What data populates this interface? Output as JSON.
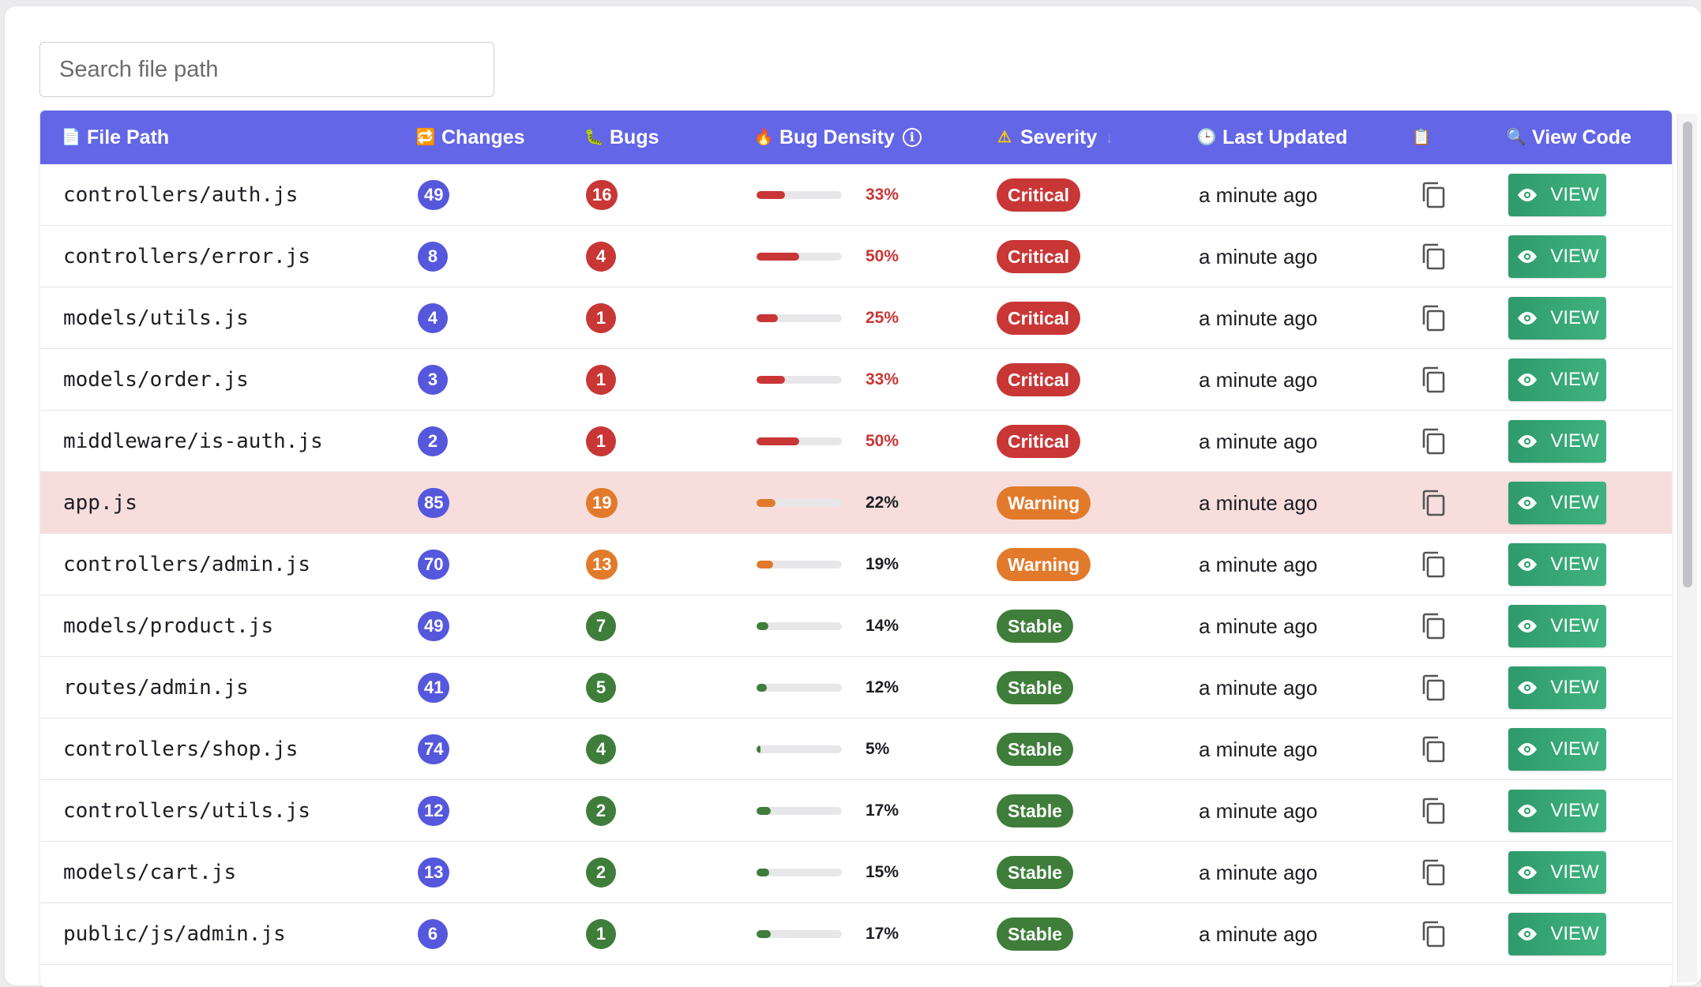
{
  "search": {
    "placeholder": "Search file path",
    "value": ""
  },
  "table": {
    "columns": [
      {
        "key": "file_path",
        "label": "File Path",
        "icon": "page-icon",
        "glyph": "📄"
      },
      {
        "key": "changes",
        "label": "Changes",
        "icon": "cycle-icon",
        "glyph": "🔁"
      },
      {
        "key": "bugs",
        "label": "Bugs",
        "icon": "bug-icon",
        "glyph": "🐛"
      },
      {
        "key": "bug_density",
        "label": "Bug Density",
        "icon": "fire-icon",
        "glyph": "🔥",
        "info": "i"
      },
      {
        "key": "severity",
        "label": "Severity",
        "icon": "warning-icon",
        "glyph": "⚠",
        "sort": "↓"
      },
      {
        "key": "last_updated",
        "label": "Last Updated",
        "icon": "clock-icon",
        "glyph": "🕒"
      },
      {
        "key": "copy",
        "label": "",
        "icon": "clipboard-icon",
        "glyph": "📋"
      },
      {
        "key": "view_code",
        "label": "View Code",
        "icon": "magnifier-icon",
        "glyph": "🔍"
      }
    ],
    "view_label": "VIEW",
    "rows": [
      {
        "path": "controllers/auth.js",
        "changes": "49",
        "bugs": "16",
        "density": "33%",
        "density_value": 0.33,
        "severity": "Critical",
        "updated": "a minute ago",
        "highlighted": false
      },
      {
        "path": "controllers/error.js",
        "changes": "8",
        "bugs": "4",
        "density": "50%",
        "density_value": 0.5,
        "severity": "Critical",
        "updated": "a minute ago",
        "highlighted": false
      },
      {
        "path": "models/utils.js",
        "changes": "4",
        "bugs": "1",
        "density": "25%",
        "density_value": 0.25,
        "severity": "Critical",
        "updated": "a minute ago",
        "highlighted": false
      },
      {
        "path": "models/order.js",
        "changes": "3",
        "bugs": "1",
        "density": "33%",
        "density_value": 0.33,
        "severity": "Critical",
        "updated": "a minute ago",
        "highlighted": false
      },
      {
        "path": "middleware/is-auth.js",
        "changes": "2",
        "bugs": "1",
        "density": "50%",
        "density_value": 0.5,
        "severity": "Critical",
        "updated": "a minute ago",
        "highlighted": false
      },
      {
        "path": "app.js",
        "changes": "85",
        "bugs": "19",
        "density": "22%",
        "density_value": 0.22,
        "severity": "Warning",
        "updated": "a minute ago",
        "highlighted": true
      },
      {
        "path": "controllers/admin.js",
        "changes": "70",
        "bugs": "13",
        "density": "19%",
        "density_value": 0.19,
        "severity": "Warning",
        "updated": "a minute ago",
        "highlighted": false
      },
      {
        "path": "models/product.js",
        "changes": "49",
        "bugs": "7",
        "density": "14%",
        "density_value": 0.14,
        "severity": "Stable",
        "updated": "a minute ago",
        "highlighted": false
      },
      {
        "path": "routes/admin.js",
        "changes": "41",
        "bugs": "5",
        "density": "12%",
        "density_value": 0.12,
        "severity": "Stable",
        "updated": "a minute ago",
        "highlighted": false
      },
      {
        "path": "controllers/shop.js",
        "changes": "74",
        "bugs": "4",
        "density": "5%",
        "density_value": 0.05,
        "severity": "Stable",
        "updated": "a minute ago",
        "highlighted": false
      },
      {
        "path": "controllers/utils.js",
        "changes": "12",
        "bugs": "2",
        "density": "17%",
        "density_value": 0.17,
        "severity": "Stable",
        "updated": "a minute ago",
        "highlighted": false
      },
      {
        "path": "models/cart.js",
        "changes": "13",
        "bugs": "2",
        "density": "15%",
        "density_value": 0.15,
        "severity": "Stable",
        "updated": "a minute ago",
        "highlighted": false
      },
      {
        "path": "public/js/admin.js",
        "changes": "6",
        "bugs": "1",
        "density": "17%",
        "density_value": 0.17,
        "severity": "Stable",
        "updated": "a minute ago",
        "highlighted": false
      }
    ]
  },
  "colors": {
    "header_bg": "#6366e7",
    "changes_badge": "#5558dc",
    "critical": "#c93636",
    "warning": "#e27a2b",
    "stable": "#3e7d3a",
    "highlight_row": "#f7dedd",
    "view_button": "#35a574"
  }
}
